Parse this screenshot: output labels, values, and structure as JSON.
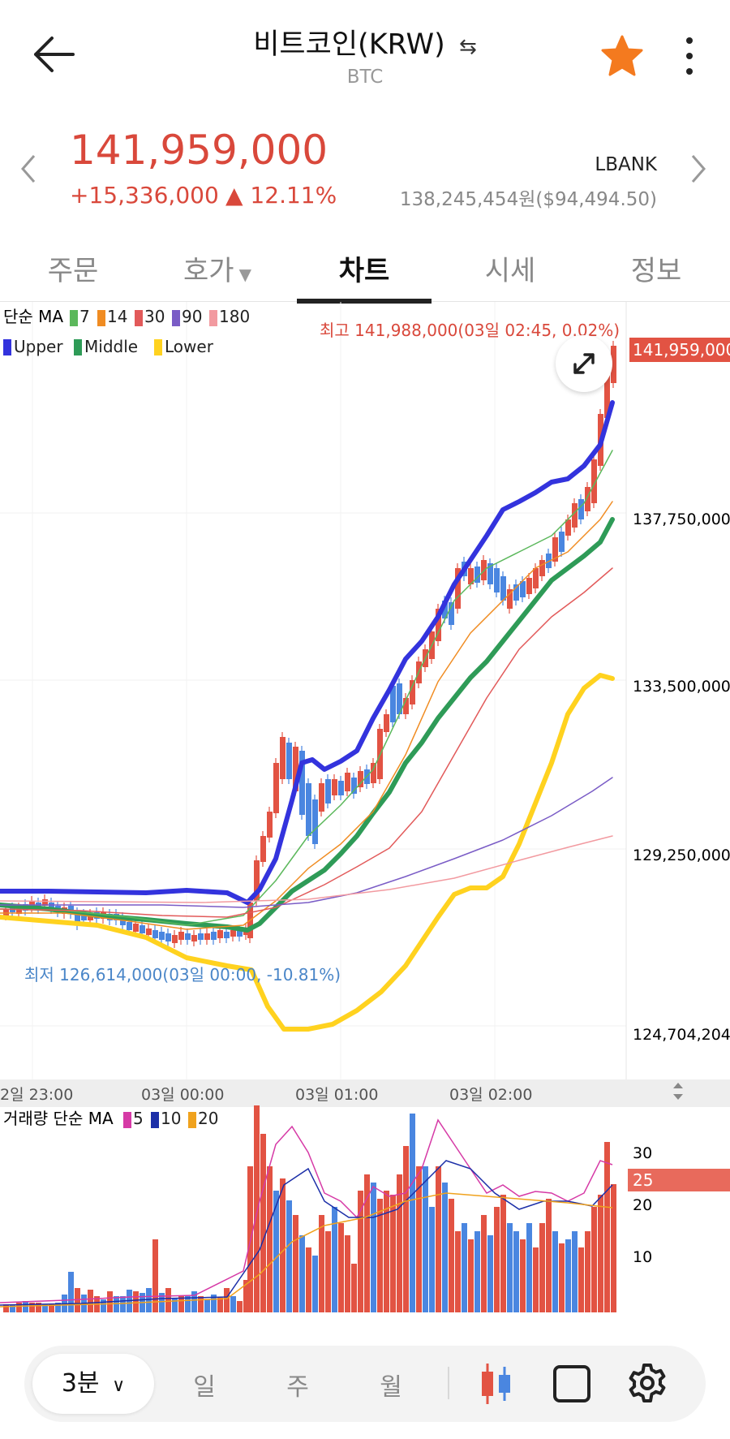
{
  "header": {
    "title": "비트코인(KRW)",
    "symbol": "BTC"
  },
  "price": {
    "current": "141,959,000",
    "change": "+15,336,000",
    "change_pct": "▲ 12.11%",
    "exchange": "LBANK",
    "exchange_price": "138,245,454원($94,494.50)"
  },
  "tabs": [
    "주문",
    "호가",
    "차트",
    "시세",
    "정보"
  ],
  "active_tab": "차트",
  "chart": {
    "ma_legend_label": "단순 MA",
    "ma_periods": [
      "7",
      "14",
      "30",
      "90",
      "180"
    ],
    "bb_legend": [
      "Upper",
      "Middle",
      "Lower"
    ],
    "high_note": "최고 141,988,000(03일 02:45, 0.02%)",
    "low_note": "최저 126,614,000(03일 00:00, -10.81%)",
    "current_price_tag": "141,959,000",
    "y_ticks": [
      "137,750,000",
      "133,500,000",
      "129,250,000",
      "124,704,204"
    ],
    "x_ticks": [
      "2일 23:00",
      "03일 00:00",
      "03일 01:00",
      "03일 02:00"
    ],
    "volume_legend_label": "거래량 단순 MA",
    "volume_ma_periods": [
      "5",
      "10",
      "20"
    ],
    "volume_ticks": [
      "30",
      "20",
      "10"
    ],
    "volume_current_tag": "25",
    "colors": {
      "up": "#e25343",
      "down": "#4a86e0",
      "upper": "#3333dd",
      "middle": "#2e9b57",
      "lower": "#ffd21f",
      "ma7": "#5cb85c",
      "ma14": "#f08c22",
      "ma30": "#e25a5a",
      "ma90": "#7a5cc6",
      "ma180": "#f29aa0"
    }
  },
  "toolbar": {
    "timeframe": "3분",
    "options": [
      "일",
      "주",
      "월"
    ]
  }
}
